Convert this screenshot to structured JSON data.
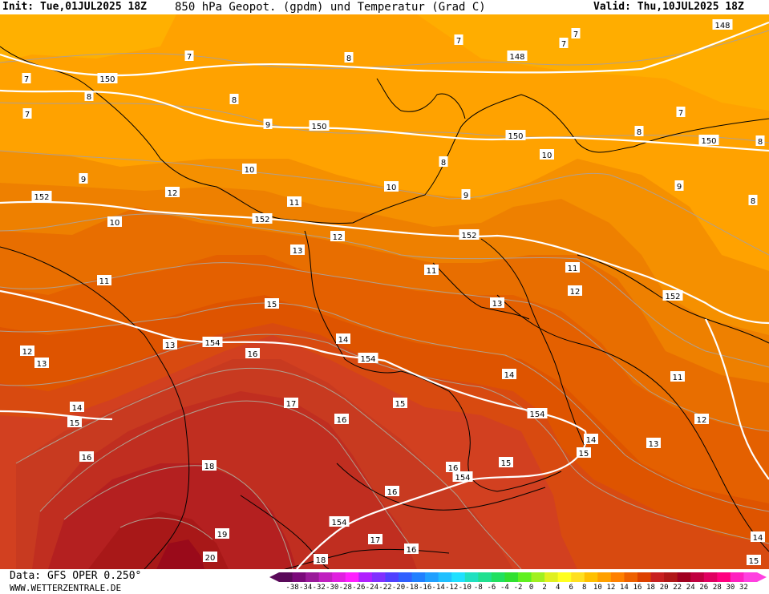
{
  "header": {
    "init": "Init: Tue,01JUL2025 18Z",
    "title": "850 hPa Geopot. (gpdm) und Temperatur (Grad C)",
    "valid": "Valid: Thu,10JUL2025 18Z"
  },
  "footer": {
    "source": "Data: GFS OPER 0.250°",
    "website": "WWW.WETTERZENTRALE.DE"
  },
  "legend": {
    "ticks": [
      "-38",
      "-34",
      "-32",
      "-30",
      "-28",
      "-26",
      "-24",
      "-22",
      "-20",
      "-18",
      "-16",
      "-14",
      "-12",
      "-10",
      "-8",
      "-6",
      "-4",
      "-2",
      "0",
      "2",
      "4",
      "6",
      "8",
      "10",
      "12",
      "14",
      "16",
      "18",
      "20",
      "22",
      "24",
      "26",
      "28",
      "30",
      "32"
    ],
    "colors": [
      "#5a0a5a",
      "#7a0a7a",
      "#9a1a9a",
      "#c020c0",
      "#e020e0",
      "#ff20ff",
      "#b020ff",
      "#8030ff",
      "#5040ff",
      "#3060ff",
      "#2080ff",
      "#20a0ff",
      "#20c0ff",
      "#20e0ff",
      "#20e0c0",
      "#20e090",
      "#20e060",
      "#30e030",
      "#60f020",
      "#a0f020",
      "#e0f020",
      "#ffff20",
      "#ffe020",
      "#ffc000",
      "#ffa000",
      "#ff8000",
      "#ee6000",
      "#dd4000",
      "#c82020",
      "#b01818",
      "#a00020",
      "#c00040",
      "#e00060",
      "#ff0080",
      "#ff20c0",
      "#ff40e0"
    ]
  },
  "temperature_labels": [
    {
      "v": "7"
    },
    {
      "v": "7"
    },
    {
      "v": "7"
    },
    {
      "v": "7"
    },
    {
      "v": "7"
    },
    {
      "v": "7"
    },
    {
      "v": "7"
    },
    {
      "v": "8"
    },
    {
      "v": "8"
    },
    {
      "v": "8"
    },
    {
      "v": "8"
    },
    {
      "v": "8"
    },
    {
      "v": "8"
    },
    {
      "v": "8"
    },
    {
      "v": "9"
    },
    {
      "v": "9"
    },
    {
      "v": "9"
    },
    {
      "v": "9"
    },
    {
      "v": "10"
    },
    {
      "v": "10"
    },
    {
      "v": "10"
    },
    {
      "v": "10"
    },
    {
      "v": "11"
    },
    {
      "v": "11"
    },
    {
      "v": "11"
    },
    {
      "v": "11"
    },
    {
      "v": "11"
    },
    {
      "v": "12"
    },
    {
      "v": "12"
    },
    {
      "v": "12"
    },
    {
      "v": "12"
    },
    {
      "v": "12"
    },
    {
      "v": "13"
    },
    {
      "v": "13"
    },
    {
      "v": "13"
    },
    {
      "v": "13"
    },
    {
      "v": "13"
    },
    {
      "v": "14"
    },
    {
      "v": "14"
    },
    {
      "v": "14"
    },
    {
      "v": "14"
    },
    {
      "v": "14"
    },
    {
      "v": "15"
    },
    {
      "v": "15"
    },
    {
      "v": "15"
    },
    {
      "v": "15"
    },
    {
      "v": "15"
    },
    {
      "v": "15"
    },
    {
      "v": "16"
    },
    {
      "v": "16"
    },
    {
      "v": "16"
    },
    {
      "v": "16"
    },
    {
      "v": "16"
    },
    {
      "v": "16"
    },
    {
      "v": "17"
    },
    {
      "v": "17"
    },
    {
      "v": "18"
    },
    {
      "v": "18"
    },
    {
      "v": "19"
    },
    {
      "v": "20"
    }
  ],
  "geopotential_labels": [
    {
      "v": "148"
    },
    {
      "v": "148"
    },
    {
      "v": "150"
    },
    {
      "v": "150"
    },
    {
      "v": "150"
    },
    {
      "v": "150"
    },
    {
      "v": "152"
    },
    {
      "v": "152"
    },
    {
      "v": "152"
    },
    {
      "v": "152"
    },
    {
      "v": "154"
    },
    {
      "v": "154"
    },
    {
      "v": "154"
    },
    {
      "v": "154"
    },
    {
      "v": "154"
    }
  ]
}
